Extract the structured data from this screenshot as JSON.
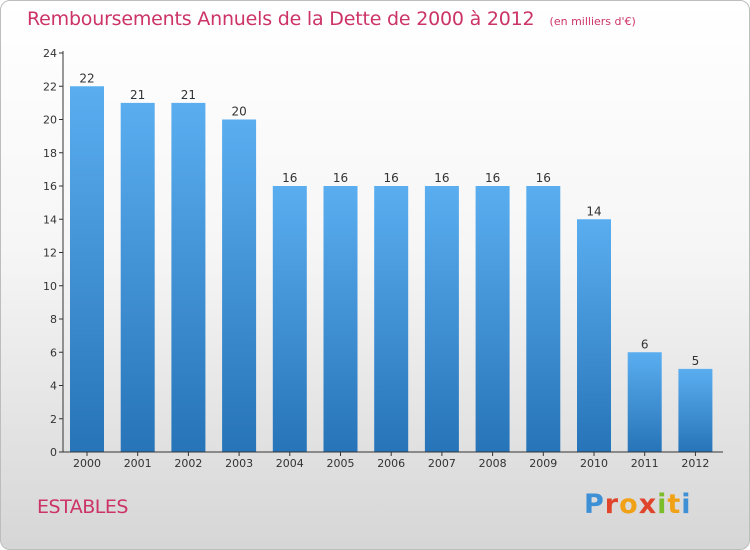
{
  "header": {
    "title": "Remboursements Annuels de la Dette de 2000 à 2012",
    "unit_note": "(en milliers d'€)"
  },
  "commune": "ESTABLES",
  "logo": {
    "letters": [
      "P",
      "r",
      "o",
      "x",
      "i",
      "t",
      "i"
    ]
  },
  "colors": {
    "title": "#cc3366",
    "bar_top": "#5aaef0",
    "bar_bottom": "#2774b8",
    "axis": "#333333"
  },
  "chart_data": {
    "type": "bar",
    "categories": [
      "2000",
      "2001",
      "2002",
      "2003",
      "2004",
      "2005",
      "2006",
      "2007",
      "2008",
      "2009",
      "2010",
      "2011",
      "2012"
    ],
    "values": [
      22,
      21,
      21,
      20,
      16,
      16,
      16,
      16,
      16,
      16,
      14,
      6,
      5
    ],
    "title": "Remboursements Annuels de la Dette de 2000 à 2012",
    "subtitle": "(en milliers d'€)",
    "xlabel": "",
    "ylabel": "",
    "ylim": [
      0,
      24
    ],
    "yticks": [
      0,
      2,
      4,
      6,
      8,
      10,
      12,
      14,
      16,
      18,
      20,
      22,
      24
    ],
    "grid": false,
    "legend": "none",
    "data_labels": true
  }
}
